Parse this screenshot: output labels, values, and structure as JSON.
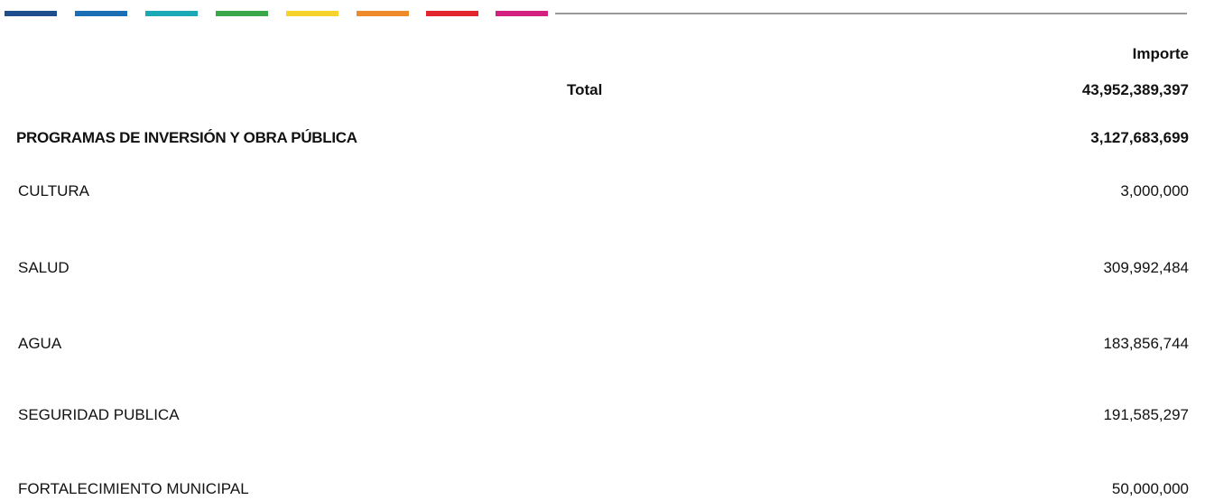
{
  "table": {
    "header": "Importe",
    "total": {
      "label": "Total",
      "value": "43,952,389,397"
    },
    "group": {
      "label": "PROGRAMAS DE INVERSIÓN Y OBRA PÚBLICA",
      "value": "3,127,683,699"
    },
    "rows": [
      [
        "CULTURA",
        "3,000,000"
      ],
      [
        "SALUD",
        "309,992,484"
      ],
      [
        "AGUA",
        "183,856,744"
      ],
      [
        "SEGURIDAD PUBLICA",
        "191,585,297"
      ],
      [
        "FORTALECIMIENTO MUNICIPAL",
        "50,000,000"
      ]
    ]
  }
}
